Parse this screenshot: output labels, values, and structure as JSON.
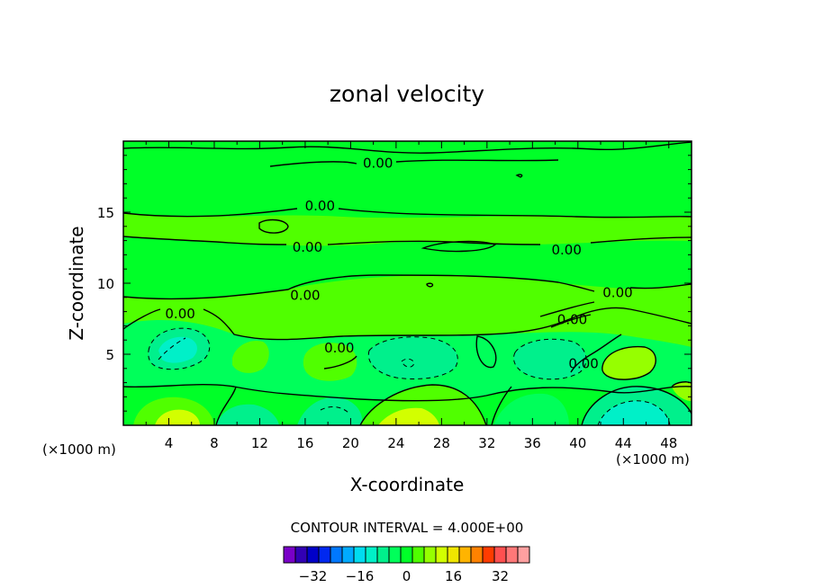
{
  "chart_data": {
    "type": "heatmap",
    "title": "zonal velocity",
    "xlabel": "X-coordinate",
    "ylabel": "Z-coordinate",
    "x_unit_left": "(×1000 m)",
    "x_unit_right": "(×1000 m)",
    "xlim": [
      0,
      50
    ],
    "ylim": [
      0,
      20
    ],
    "x_ticks": [
      4,
      8,
      12,
      16,
      20,
      24,
      28,
      32,
      36,
      40,
      44,
      48
    ],
    "y_ticks": [
      5,
      10,
      15
    ],
    "contour_labels": [
      {
        "text": "0.00",
        "x": 22.4,
        "z": 18.5
      },
      {
        "text": "0.00",
        "x": 17.3,
        "z": 15.5
      },
      {
        "text": "0.00",
        "x": 16.2,
        "z": 12.6
      },
      {
        "text": "0.00",
        "x": 39.0,
        "z": 12.4
      },
      {
        "text": "0.00",
        "x": 43.5,
        "z": 9.4
      },
      {
        "text": "0.00",
        "x": 16.0,
        "z": 9.2
      },
      {
        "text": "0.00",
        "x": 5.0,
        "z": 7.9
      },
      {
        "text": "0.00",
        "x": 39.5,
        "z": 7.5
      },
      {
        "text": "0.00",
        "x": 19.0,
        "z": 5.5
      },
      {
        "text": "0.00",
        "x": 40.5,
        "z": 4.4
      }
    ],
    "contour_interval_text": "CONTOUR INTERVAL = 4.000E+00",
    "colorbar": {
      "colors": [
        "#7a00c8",
        "#3200b4",
        "#0000c8",
        "#0028f0",
        "#0078ff",
        "#00aaff",
        "#00dcf0",
        "#00f0c8",
        "#00f08c",
        "#00ff5a",
        "#00ff28",
        "#50ff00",
        "#96ff00",
        "#d2ff00",
        "#f0e600",
        "#ffb400",
        "#ff8200",
        "#ff3c00",
        "#ff5050",
        "#ff7878",
        "#ffa0a0"
      ],
      "tick_labels": [
        -32,
        -16,
        0,
        16,
        32
      ],
      "tick_label_text": [
        "−32",
        "−16",
        "0",
        "16",
        "32"
      ]
    }
  }
}
